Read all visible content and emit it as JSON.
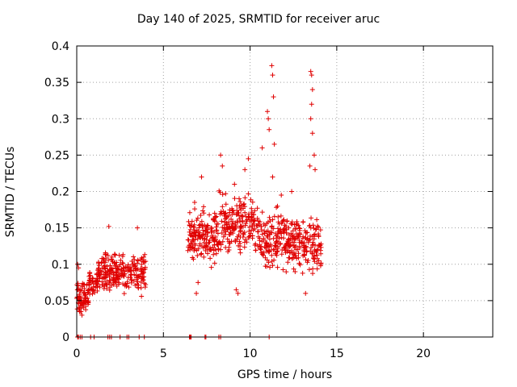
{
  "chart_data": {
    "type": "scatter",
    "title": "Day 140 of 2025, SRMTID for receiver aruc",
    "xlabel": "GPS time / hours",
    "ylabel": "SRMTID / TECUs",
    "xlim": [
      0,
      24
    ],
    "ylim": [
      0,
      0.4
    ],
    "xticks": [
      0,
      5,
      10,
      15,
      20
    ],
    "yticks": [
      0,
      0.05,
      0.1,
      0.15,
      0.2,
      0.25,
      0.3,
      0.35,
      0.4
    ],
    "xtick_labels": [
      "0",
      "5",
      "10",
      "15",
      "20"
    ],
    "ytick_labels": [
      "0",
      "0.05",
      "0.1",
      "0.15",
      "0.2",
      "0.25",
      "0.3",
      "0.35",
      "0.4"
    ],
    "grid": true,
    "marker": "+",
    "marker_color": "#e00000",
    "clusters": [
      {
        "x_range": [
          0.0,
          0.7
        ],
        "y_center": 0.055,
        "y_spread": 0.025,
        "count": 70
      },
      {
        "x_range": [
          0.7,
          1.2
        ],
        "y_center": 0.075,
        "y_spread": 0.02,
        "count": 45
      },
      {
        "x_range": [
          1.2,
          2.5
        ],
        "y_center": 0.09,
        "y_spread": 0.03,
        "count": 130
      },
      {
        "x_range": [
          2.5,
          4.0
        ],
        "y_center": 0.088,
        "y_spread": 0.03,
        "count": 120
      },
      {
        "x_range": [
          6.4,
          8.2
        ],
        "y_center": 0.14,
        "y_spread": 0.045,
        "count": 170
      },
      {
        "x_range": [
          8.2,
          10.5
        ],
        "y_center": 0.155,
        "y_spread": 0.045,
        "count": 190
      },
      {
        "x_range": [
          10.5,
          12.5
        ],
        "y_center": 0.135,
        "y_spread": 0.045,
        "count": 180
      },
      {
        "x_range": [
          12.5,
          14.1
        ],
        "y_center": 0.125,
        "y_spread": 0.045,
        "count": 140
      }
    ],
    "outliers": [
      {
        "x": 0.05,
        "y": 0.1
      },
      {
        "x": 0.1,
        "y": 0.095
      },
      {
        "x": 1.85,
        "y": 0.152
      },
      {
        "x": 3.5,
        "y": 0.15
      },
      {
        "x": 6.8,
        "y": 0.185
      },
      {
        "x": 7.2,
        "y": 0.22
      },
      {
        "x": 8.3,
        "y": 0.25
      },
      {
        "x": 8.4,
        "y": 0.235
      },
      {
        "x": 9.1,
        "y": 0.21
      },
      {
        "x": 9.7,
        "y": 0.23
      },
      {
        "x": 9.9,
        "y": 0.245
      },
      {
        "x": 10.7,
        "y": 0.26
      },
      {
        "x": 11.0,
        "y": 0.31
      },
      {
        "x": 11.05,
        "y": 0.3
      },
      {
        "x": 11.1,
        "y": 0.285
      },
      {
        "x": 11.25,
        "y": 0.373
      },
      {
        "x": 11.3,
        "y": 0.36
      },
      {
        "x": 11.35,
        "y": 0.33
      },
      {
        "x": 11.4,
        "y": 0.265
      },
      {
        "x": 11.3,
        "y": 0.22
      },
      {
        "x": 11.8,
        "y": 0.195
      },
      {
        "x": 12.4,
        "y": 0.2
      },
      {
        "x": 13.5,
        "y": 0.365
      },
      {
        "x": 13.55,
        "y": 0.36
      },
      {
        "x": 13.6,
        "y": 0.34
      },
      {
        "x": 13.55,
        "y": 0.32
      },
      {
        "x": 13.5,
        "y": 0.3
      },
      {
        "x": 13.6,
        "y": 0.28
      },
      {
        "x": 13.45,
        "y": 0.235
      },
      {
        "x": 13.7,
        "y": 0.25
      },
      {
        "x": 13.75,
        "y": 0.23
      },
      {
        "x": 13.2,
        "y": 0.06
      },
      {
        "x": 6.9,
        "y": 0.06
      },
      {
        "x": 7.0,
        "y": 0.075
      },
      {
        "x": 9.3,
        "y": 0.06
      },
      {
        "x": 9.2,
        "y": 0.065
      },
      {
        "x": 0.3,
        "y": 0.03
      },
      {
        "x": 0.25,
        "y": 0.035
      }
    ],
    "zero_points": [
      0.05,
      0.1,
      0.2,
      0.3,
      0.8,
      1.0,
      1.8,
      1.9,
      2.0,
      2.5,
      2.9,
      3.0,
      3.6,
      3.9,
      6.5,
      6.55,
      6.6,
      7.4,
      7.45,
      8.2,
      8.3,
      11.1
    ]
  }
}
